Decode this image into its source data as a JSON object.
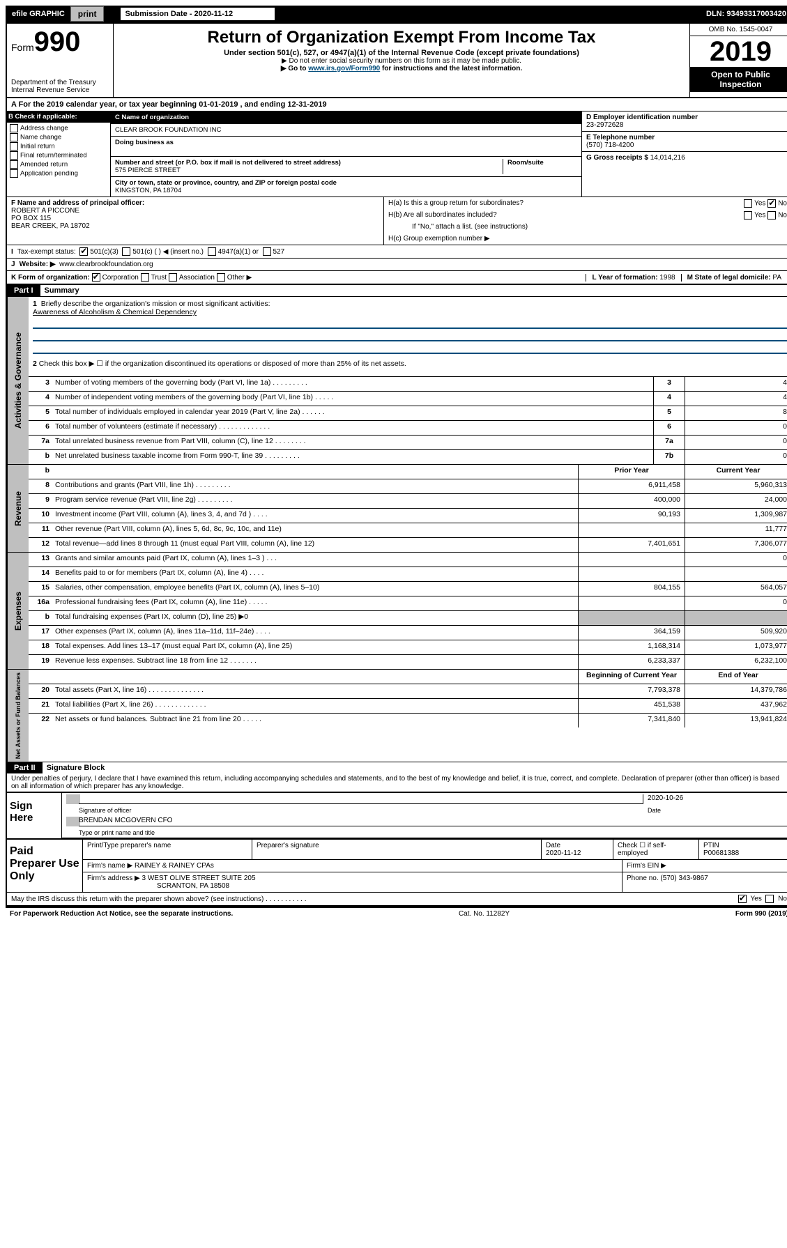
{
  "topbar": {
    "efile": "efile GRAPHIC",
    "print": "print",
    "subdate_label": "Submission Date - 2020-11-12",
    "dln": "DLN: 93493317003420"
  },
  "header": {
    "form_prefix": "Form",
    "form_num": "990",
    "dept": "Department of the Treasury",
    "irs": "Internal Revenue Service",
    "title": "Return of Organization Exempt From Income Tax",
    "sub1": "Under section 501(c), 527, or 4947(a)(1) of the Internal Revenue Code (except private foundations)",
    "sub2": "▶ Do not enter social security numbers on this form as it may be made public.",
    "sub3_pre": "▶ Go to ",
    "sub3_link": "www.irs.gov/Form990",
    "sub3_post": " for instructions and the latest information.",
    "omb": "OMB No. 1545-0047",
    "year": "2019",
    "open": "Open to Public Inspection"
  },
  "rowA": "A   For the 2019 calendar year, or tax year beginning 01-01-2019    , and ending 12-31-2019",
  "colB": {
    "label": "B Check if applicable:",
    "items": [
      "Address change",
      "Name change",
      "Initial return",
      "Final return/terminated",
      "Amended return",
      "Application pending"
    ]
  },
  "colC": {
    "c_name_label": "C Name of organization",
    "c_name": "CLEAR BROOK FOUNDATION INC",
    "dba_label": "Doing business as",
    "addr_label": "Number and street (or P.O. box if mail is not delivered to street address)",
    "addr": "575 PIERCE STREET",
    "room_label": "Room/suite",
    "city_label": "City or town, state or province, country, and ZIP or foreign postal code",
    "city": "KINGSTON, PA  18704"
  },
  "colD": {
    "d_label": "D Employer identification number",
    "ein": "23-2972628",
    "e_label": "E Telephone number",
    "phone": "(570) 718-4200",
    "g_label": "G Gross receipts $",
    "gross": "14,014,216"
  },
  "rowF": {
    "f_label": "F  Name and address of principal officer:",
    "f_name": "ROBERT A PICCONE",
    "f_addr1": "PO BOX 115",
    "f_addr2": "BEAR CREEK, PA  18702"
  },
  "rowH": {
    "ha": "H(a)  Is this a group return for subordinates?",
    "hb": "H(b)  Are all subordinates included?",
    "hb_note": "If \"No,\" attach a list. (see instructions)",
    "hc": "H(c)  Group exemption number ▶",
    "yes": "Yes",
    "no": "No"
  },
  "rowI": {
    "label": "Tax-exempt status:",
    "opt1": "501(c)(3)",
    "opt2": "501(c) (   ) ◀ (insert no.)",
    "opt3": "4947(a)(1) or",
    "opt4": "527"
  },
  "rowJ": {
    "label": "Website: ▶",
    "value": "www.clearbrookfoundation.org"
  },
  "rowK": {
    "label": "K Form of organization:",
    "corp": "Corporation",
    "trust": "Trust",
    "assoc": "Association",
    "other": "Other ▶",
    "l_label": "L Year of formation:",
    "l_val": "1998",
    "m_label": "M State of legal domicile:",
    "m_val": "PA"
  },
  "part1": {
    "header": "Part I",
    "title": "Summary",
    "q1": "Briefly describe the organization's mission or most significant activities:",
    "q1_ans": "Awareness of Alcoholism & Chemical Dependency",
    "q2": "Check this box ▶ ☐  if the organization discontinued its operations or disposed of more than 25% of its net assets."
  },
  "governance": [
    {
      "n": "3",
      "d": "Number of voting members of the governing body (Part VI, line 1a)  .    .    .    .    .    .    .    .    .",
      "b": "3",
      "v": "4"
    },
    {
      "n": "4",
      "d": "Number of independent voting members of the governing body (Part VI, line 1b)  .    .    .    .    .",
      "b": "4",
      "v": "4"
    },
    {
      "n": "5",
      "d": "Total number of individuals employed in calendar year 2019 (Part V, line 2a)  .    .    .    .    .    .",
      "b": "5",
      "v": "8"
    },
    {
      "n": "6",
      "d": "Total number of volunteers (estimate if necessary)  .    .    .    .    .    .    .    .    .    .    .    .    .",
      "b": "6",
      "v": "0"
    },
    {
      "n": "7a",
      "d": "Total unrelated business revenue from Part VIII, column (C), line 12  .    .    .    .    .    .    .    .",
      "b": "7a",
      "v": "0"
    },
    {
      "n": "b",
      "d": "Net unrelated business taxable income from Form 990-T, line 39   .    .    .    .    .    .    .    .    .",
      "b": "7b",
      "v": "0"
    }
  ],
  "revenue_hdr": {
    "prior": "Prior Year",
    "current": "Current Year"
  },
  "revenue": [
    {
      "n": "8",
      "d": "Contributions and grants (Part VIII, line 1h)  .    .    .    .    .    .    .    .    .",
      "p": "6,911,458",
      "c": "5,960,313"
    },
    {
      "n": "9",
      "d": "Program service revenue (Part VIII, line 2g)  .    .    .    .    .    .    .    .    .",
      "p": "400,000",
      "c": "24,000"
    },
    {
      "n": "10",
      "d": "Investment income (Part VIII, column (A), lines 3, 4, and 7d )  .    .    .    .",
      "p": "90,193",
      "c": "1,309,987"
    },
    {
      "n": "11",
      "d": "Other revenue (Part VIII, column (A), lines 5, 6d, 8c, 9c, 10c, and 11e)",
      "p": "",
      "c": "11,777"
    },
    {
      "n": "12",
      "d": "Total revenue—add lines 8 through 11 (must equal Part VIII, column (A), line 12)",
      "p": "7,401,651",
      "c": "7,306,077"
    }
  ],
  "expenses": [
    {
      "n": "13",
      "d": "Grants and similar amounts paid (Part IX, column (A), lines 1–3 )  .    .    .",
      "p": "",
      "c": "0"
    },
    {
      "n": "14",
      "d": "Benefits paid to or for members (Part IX, column (A), line 4)  .    .    .    .",
      "p": "",
      "c": ""
    },
    {
      "n": "15",
      "d": "Salaries, other compensation, employee benefits (Part IX, column (A), lines 5–10)",
      "p": "804,155",
      "c": "564,057"
    },
    {
      "n": "16a",
      "d": "Professional fundraising fees (Part IX, column (A), line 11e)  .    .    .    .    .",
      "p": "",
      "c": "0"
    },
    {
      "n": "b",
      "d": "Total fundraising expenses (Part IX, column (D), line 25) ▶0",
      "p": "shade",
      "c": "shade"
    },
    {
      "n": "17",
      "d": "Other expenses (Part IX, column (A), lines 11a–11d, 11f–24e)  .    .    .    .",
      "p": "364,159",
      "c": "509,920"
    },
    {
      "n": "18",
      "d": "Total expenses. Add lines 13–17 (must equal Part IX, column (A), line 25)",
      "p": "1,168,314",
      "c": "1,073,977"
    },
    {
      "n": "19",
      "d": "Revenue less expenses. Subtract line 18 from line 12  .    .    .    .    .    .    .",
      "p": "6,233,337",
      "c": "6,232,100"
    }
  ],
  "netassets_hdr": {
    "begin": "Beginning of Current Year",
    "end": "End of Year"
  },
  "netassets": [
    {
      "n": "20",
      "d": "Total assets (Part X, line 16)  .    .    .    .    .    .    .    .    .    .    .    .    .    .",
      "p": "7,793,378",
      "c": "14,379,786"
    },
    {
      "n": "21",
      "d": "Total liabilities (Part X, line 26)  .    .    .    .    .    .    .    .    .    .    .    .    .",
      "p": "451,538",
      "c": "437,962"
    },
    {
      "n": "22",
      "d": "Net assets or fund balances. Subtract line 21 from line 20  .    .    .    .    .",
      "p": "7,341,840",
      "c": "13,941,824"
    }
  ],
  "part2": {
    "header": "Part II",
    "title": "Signature Block",
    "perjury": "Under penalties of perjury, I declare that I have examined this return, including accompanying schedules and statements, and to the best of my knowledge and belief, it is true, correct, and complete. Declaration of preparer (other than officer) is based on all information of which preparer has any knowledge."
  },
  "sign": {
    "label": "Sign Here",
    "sig_officer": "Signature of officer",
    "date": "2020-10-26",
    "date_label": "Date",
    "name": "BRENDAN MCGOVERN  CFO",
    "name_label": "Type or print name and title"
  },
  "paid": {
    "label": "Paid Preparer Use Only",
    "h1": "Print/Type preparer's name",
    "h2": "Preparer's signature",
    "h3": "Date",
    "h3v": "2020-11-12",
    "h4": "Check ☐ if self-employed",
    "h5": "PTIN",
    "h5v": "P00681388",
    "firm_name_label": "Firm's name    ▶",
    "firm_name": "RAINEY & RAINEY CPAs",
    "firm_ein_label": "Firm's EIN ▶",
    "firm_addr_label": "Firm's address ▶",
    "firm_addr1": "3 WEST OLIVE STREET SUITE 205",
    "firm_addr2": "SCRANTON, PA  18508",
    "phone_label": "Phone no.",
    "phone": "(570) 343-9867"
  },
  "discuss": "May the IRS discuss this return with the preparer shown above? (see instructions)   .    .    .    .    .    .    .    .    .    .    .",
  "footer": {
    "left": "For Paperwork Reduction Act Notice, see the separate instructions.",
    "mid": "Cat. No. 11282Y",
    "right": "Form 990 (2019)"
  },
  "sides": {
    "gov": "Activities & Governance",
    "rev": "Revenue",
    "exp": "Expenses",
    "net": "Net Assets or Fund Balances"
  }
}
